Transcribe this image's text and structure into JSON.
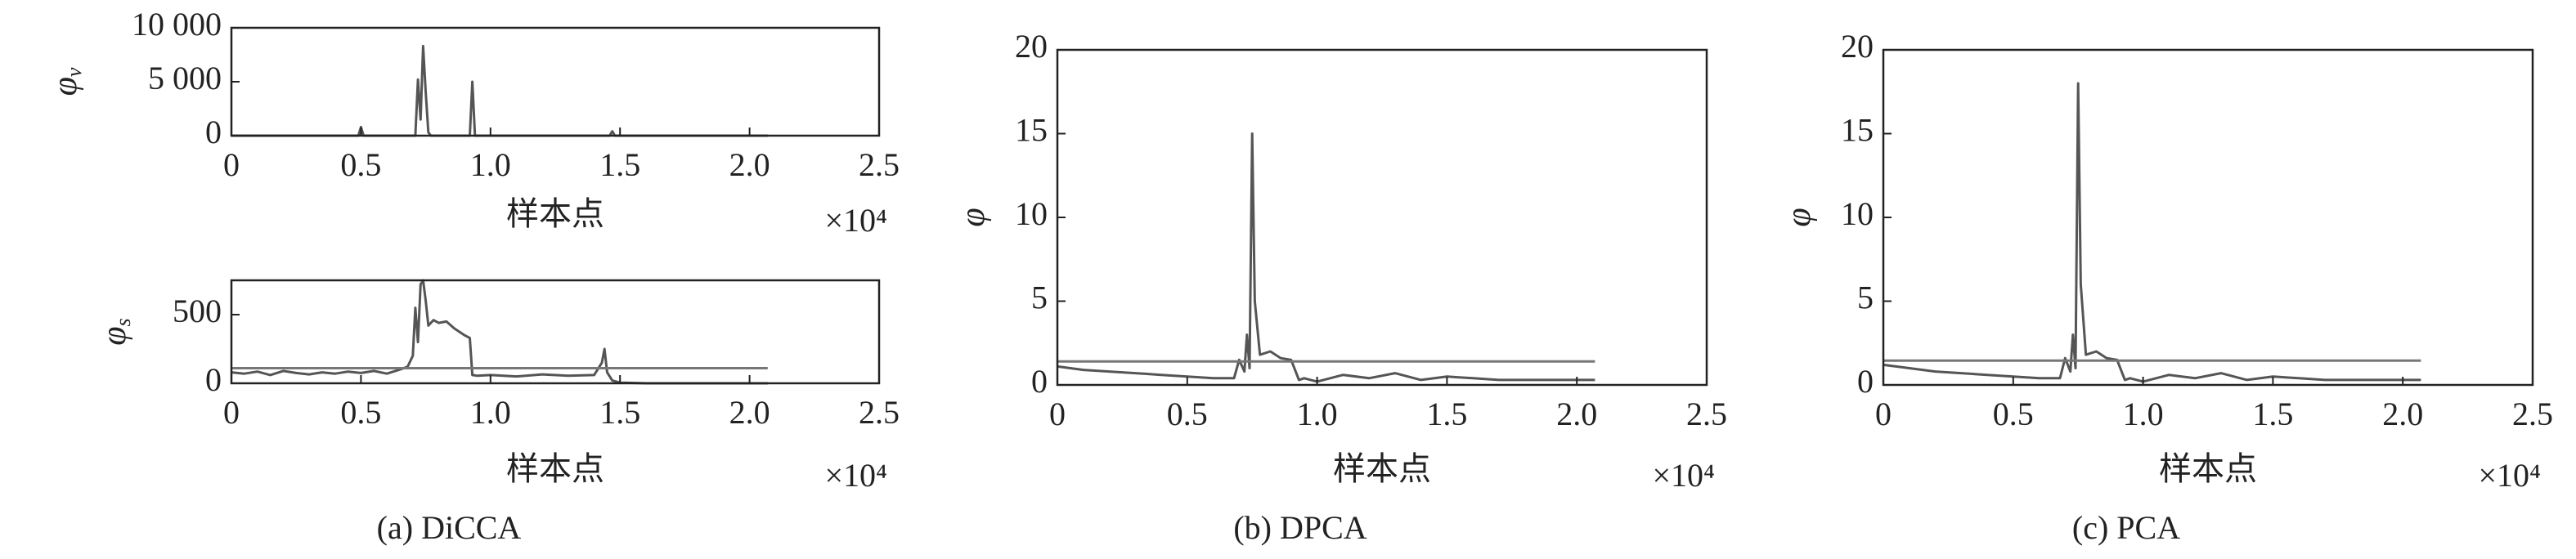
{
  "chart_data": [
    {
      "type": "line",
      "ylabel": "φ",
      "ylabel_sub": "v",
      "xlabel": "样本点",
      "x_offset_label": "×10⁴",
      "xlim": [
        0,
        2.5
      ],
      "xticks": [
        0,
        0.5,
        {
          "value": 1,
          "label": "1.0"
        },
        1.5,
        {
          "value": 2,
          "label": "2.0"
        },
        2.5
      ],
      "ylim": [
        0,
        10000
      ],
      "yticks": [
        0,
        {
          "value": 5000,
          "label": "5 000"
        },
        {
          "value": 10000,
          "label": "10 000"
        }
      ],
      "series": [
        {
          "color": "#555555",
          "x": [
            0,
            0.49,
            0.5,
            0.51,
            0.71,
            0.72,
            0.73,
            0.74,
            0.75,
            0.76,
            0.77,
            0.92,
            0.93,
            0.94,
            1.46,
            1.47,
            1.48,
            2.07
          ],
          "values": [
            0,
            0,
            800,
            0,
            0,
            5200,
            1500,
            8300,
            4000,
            300,
            0,
            0,
            5000,
            0,
            0,
            400,
            0,
            0
          ]
        }
      ]
    },
    {
      "type": "line",
      "ylabel": "φ",
      "ylabel_sub": "s",
      "xlabel": "样本点",
      "x_offset_label": "×10⁴",
      "caption": "(a) DiCCA",
      "xlim": [
        0,
        2.5
      ],
      "xticks": [
        0,
        0.5,
        {
          "value": 1,
          "label": "1.0"
        },
        1.5,
        {
          "value": 2,
          "label": "2.0"
        },
        2.5
      ],
      "ylim": [
        0,
        750
      ],
      "yticks": [
        0,
        500
      ],
      "series": [
        {
          "color": "#555555",
          "x": [
            0,
            0.05,
            0.1,
            0.15,
            0.2,
            0.25,
            0.3,
            0.35,
            0.4,
            0.45,
            0.5,
            0.55,
            0.6,
            0.65,
            0.68,
            0.7,
            0.71,
            0.72,
            0.73,
            0.74,
            0.75,
            0.76,
            0.78,
            0.8,
            0.83,
            0.86,
            0.9,
            0.92,
            0.93,
            0.95,
            1.0,
            1.1,
            1.2,
            1.3,
            1.4,
            1.43,
            1.44,
            1.45,
            1.47,
            1.5,
            1.6,
            1.8,
            2.07
          ],
          "values": [
            80,
            70,
            85,
            60,
            90,
            75,
            65,
            80,
            70,
            85,
            75,
            90,
            70,
            100,
            120,
            200,
            550,
            300,
            720,
            750,
            600,
            420,
            460,
            440,
            450,
            400,
            350,
            330,
            60,
            55,
            60,
            50,
            65,
            55,
            60,
            150,
            250,
            80,
            20,
            5,
            0,
            0,
            0
          ]
        },
        {
          "color": "#777777",
          "x": [
            0,
            2.07
          ],
          "values": [
            110,
            110
          ]
        }
      ]
    },
    {
      "type": "line",
      "ylabel": "φ",
      "xlabel": "样本点",
      "x_offset_label": "×10⁴",
      "caption": "(b) DPCA",
      "xlim": [
        0,
        2.5
      ],
      "xticks": [
        0,
        0.5,
        {
          "value": 1,
          "label": "1.0"
        },
        1.5,
        {
          "value": 2,
          "label": "2.0"
        },
        2.5
      ],
      "ylim": [
        0,
        20
      ],
      "yticks": [
        0,
        5,
        10,
        15,
        20
      ],
      "series": [
        {
          "color": "#555555",
          "x": [
            0,
            0.1,
            0.2,
            0.3,
            0.4,
            0.5,
            0.6,
            0.68,
            0.7,
            0.72,
            0.73,
            0.74,
            0.75,
            0.76,
            0.78,
            0.82,
            0.86,
            0.9,
            0.93,
            0.95,
            1.0,
            1.1,
            1.2,
            1.3,
            1.4,
            1.5,
            1.6,
            1.7,
            1.8,
            1.9,
            2.07
          ],
          "values": [
            1.1,
            0.9,
            0.8,
            0.7,
            0.6,
            0.5,
            0.4,
            0.4,
            1.5,
            0.8,
            3,
            1,
            15,
            5,
            1.8,
            2,
            1.6,
            1.5,
            0.3,
            0.4,
            0.2,
            0.6,
            0.4,
            0.7,
            0.3,
            0.5,
            0.4,
            0.3,
            0.3,
            0.3,
            0.3
          ]
        },
        {
          "color": "#777777",
          "x": [
            0,
            2.07
          ],
          "values": [
            1.4,
            1.4
          ]
        }
      ]
    },
    {
      "type": "line",
      "ylabel": "φ",
      "xlabel": "样本点",
      "x_offset_label": "×10⁴",
      "caption": "(c) PCA",
      "xlim": [
        0,
        2.5
      ],
      "xticks": [
        0,
        0.5,
        {
          "value": 1,
          "label": "1.0"
        },
        1.5,
        {
          "value": 2,
          "label": "2.0"
        },
        2.5
      ],
      "ylim": [
        0,
        20
      ],
      "yticks": [
        0,
        5,
        10,
        15,
        20
      ],
      "series": [
        {
          "color": "#555555",
          "x": [
            0,
            0.1,
            0.2,
            0.3,
            0.4,
            0.5,
            0.6,
            0.68,
            0.7,
            0.72,
            0.73,
            0.74,
            0.75,
            0.76,
            0.78,
            0.82,
            0.86,
            0.9,
            0.93,
            0.95,
            1.0,
            1.1,
            1.2,
            1.3,
            1.4,
            1.5,
            1.6,
            1.7,
            1.8,
            1.9,
            2.07
          ],
          "values": [
            1.2,
            1.0,
            0.8,
            0.7,
            0.6,
            0.5,
            0.4,
            0.4,
            1.6,
            0.8,
            3,
            1,
            18,
            6,
            1.8,
            2,
            1.6,
            1.5,
            0.3,
            0.4,
            0.2,
            0.6,
            0.4,
            0.7,
            0.3,
            0.5,
            0.4,
            0.3,
            0.3,
            0.3,
            0.3
          ]
        },
        {
          "color": "#777777",
          "x": [
            0,
            2.07
          ],
          "values": [
            1.45,
            1.45
          ]
        }
      ]
    }
  ]
}
